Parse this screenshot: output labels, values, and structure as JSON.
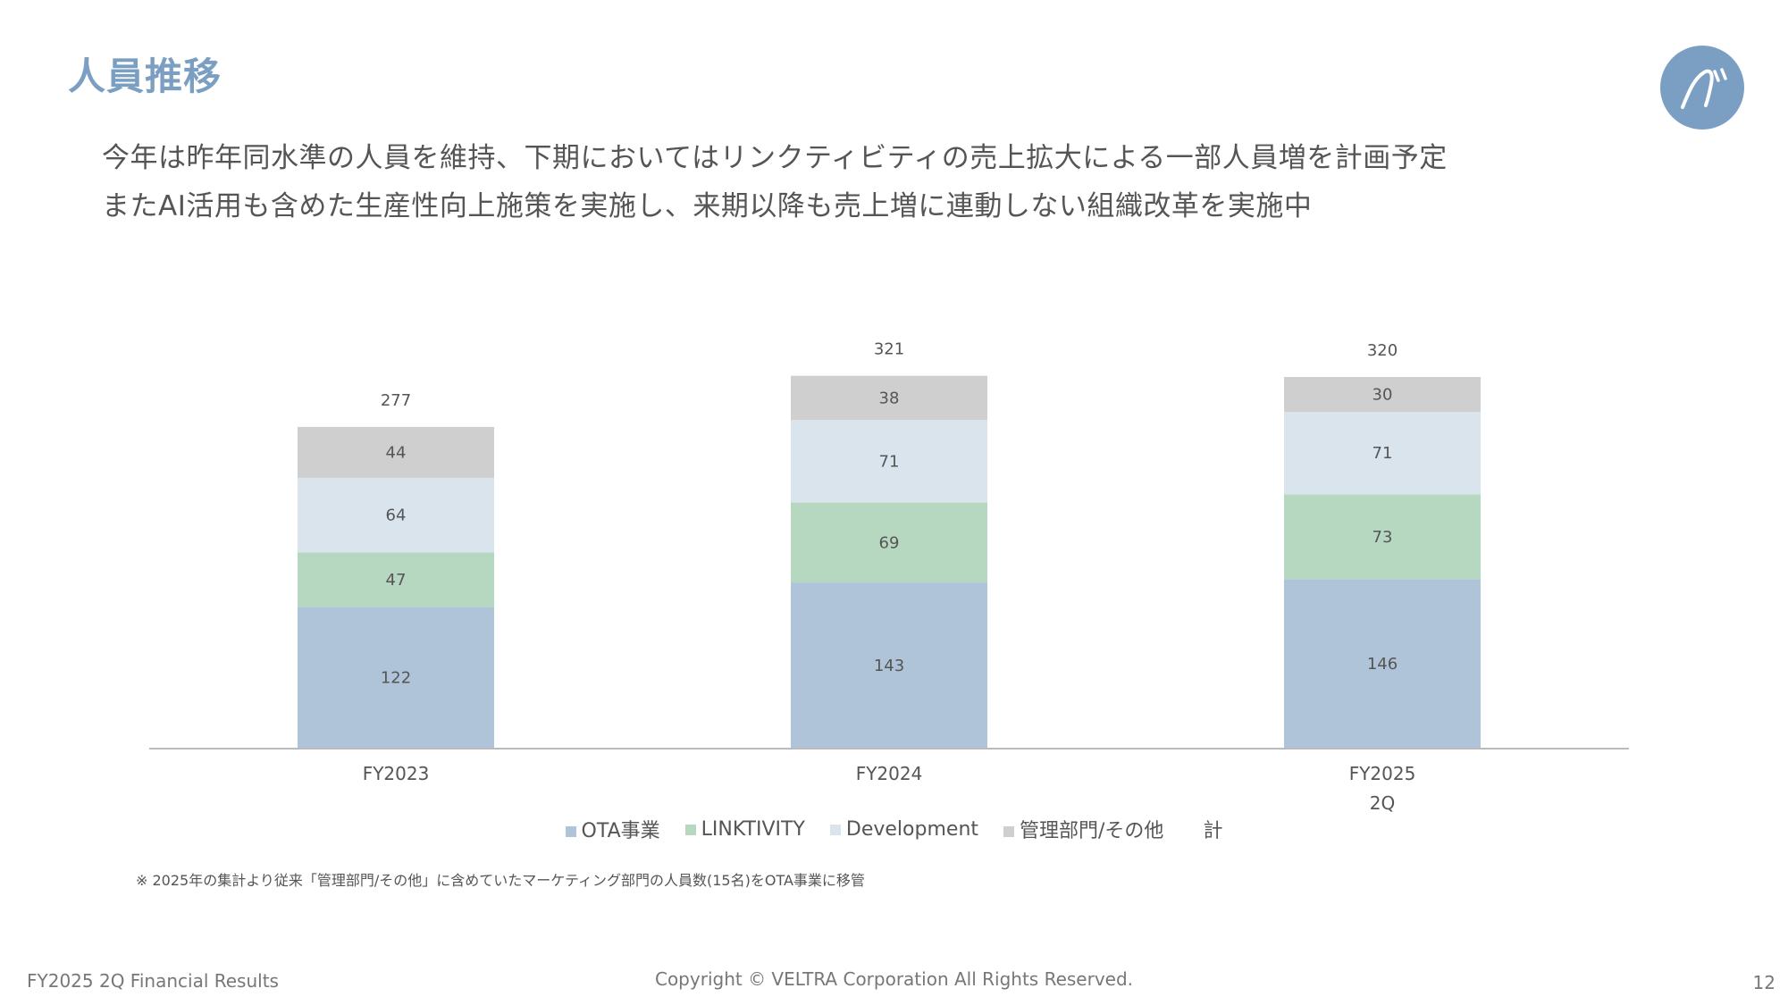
{
  "slide": {
    "title": "人員推移",
    "lead_line1": "今年は昨年同水準の人員を維持、下期においてはリンクティビティの売上拡大による一部人員増を計画予定",
    "lead_line2": "またAI活用も含めた生産性向上施策を実施し、来期以降も売上増に連動しない組織改革を実施中",
    "note": "※ 2025年の集計より従来「管理部門/その他」に含めていたマーケティング部門の人員数(15名)をOTA事業に移管",
    "footer_left": "FY2025 2Q Financial Results",
    "footer_center": "Copyright © VELTRA Corporation All Rights Reserved.",
    "page_number": "12",
    "logo_icon": "veltra-logo-icon",
    "logo_color": "#7a9fc2"
  },
  "chart_data": {
    "type": "bar",
    "stacked": true,
    "categories": [
      [
        "FY2023"
      ],
      [
        "FY2024"
      ],
      [
        "FY2025",
        "2Q"
      ]
    ],
    "series": [
      {
        "name": "OTA事業",
        "values": [
          122,
          143,
          146
        ],
        "color": "#b0c4d9"
      },
      {
        "name": "LINKTIVITY",
        "values": [
          47,
          69,
          73
        ],
        "color": "#b7d8c0"
      },
      {
        "name": "Development",
        "values": [
          64,
          71,
          71
        ],
        "color": "#dae4ed"
      },
      {
        "name": "管理部門/その他",
        "values": [
          44,
          38,
          30
        ],
        "color": "#cfcfcf"
      }
    ],
    "totals": {
      "name": "計",
      "values": [
        277,
        321,
        320
      ]
    },
    "ylim": [
      0,
      340
    ],
    "legend_position": "bottom",
    "grid": false
  }
}
